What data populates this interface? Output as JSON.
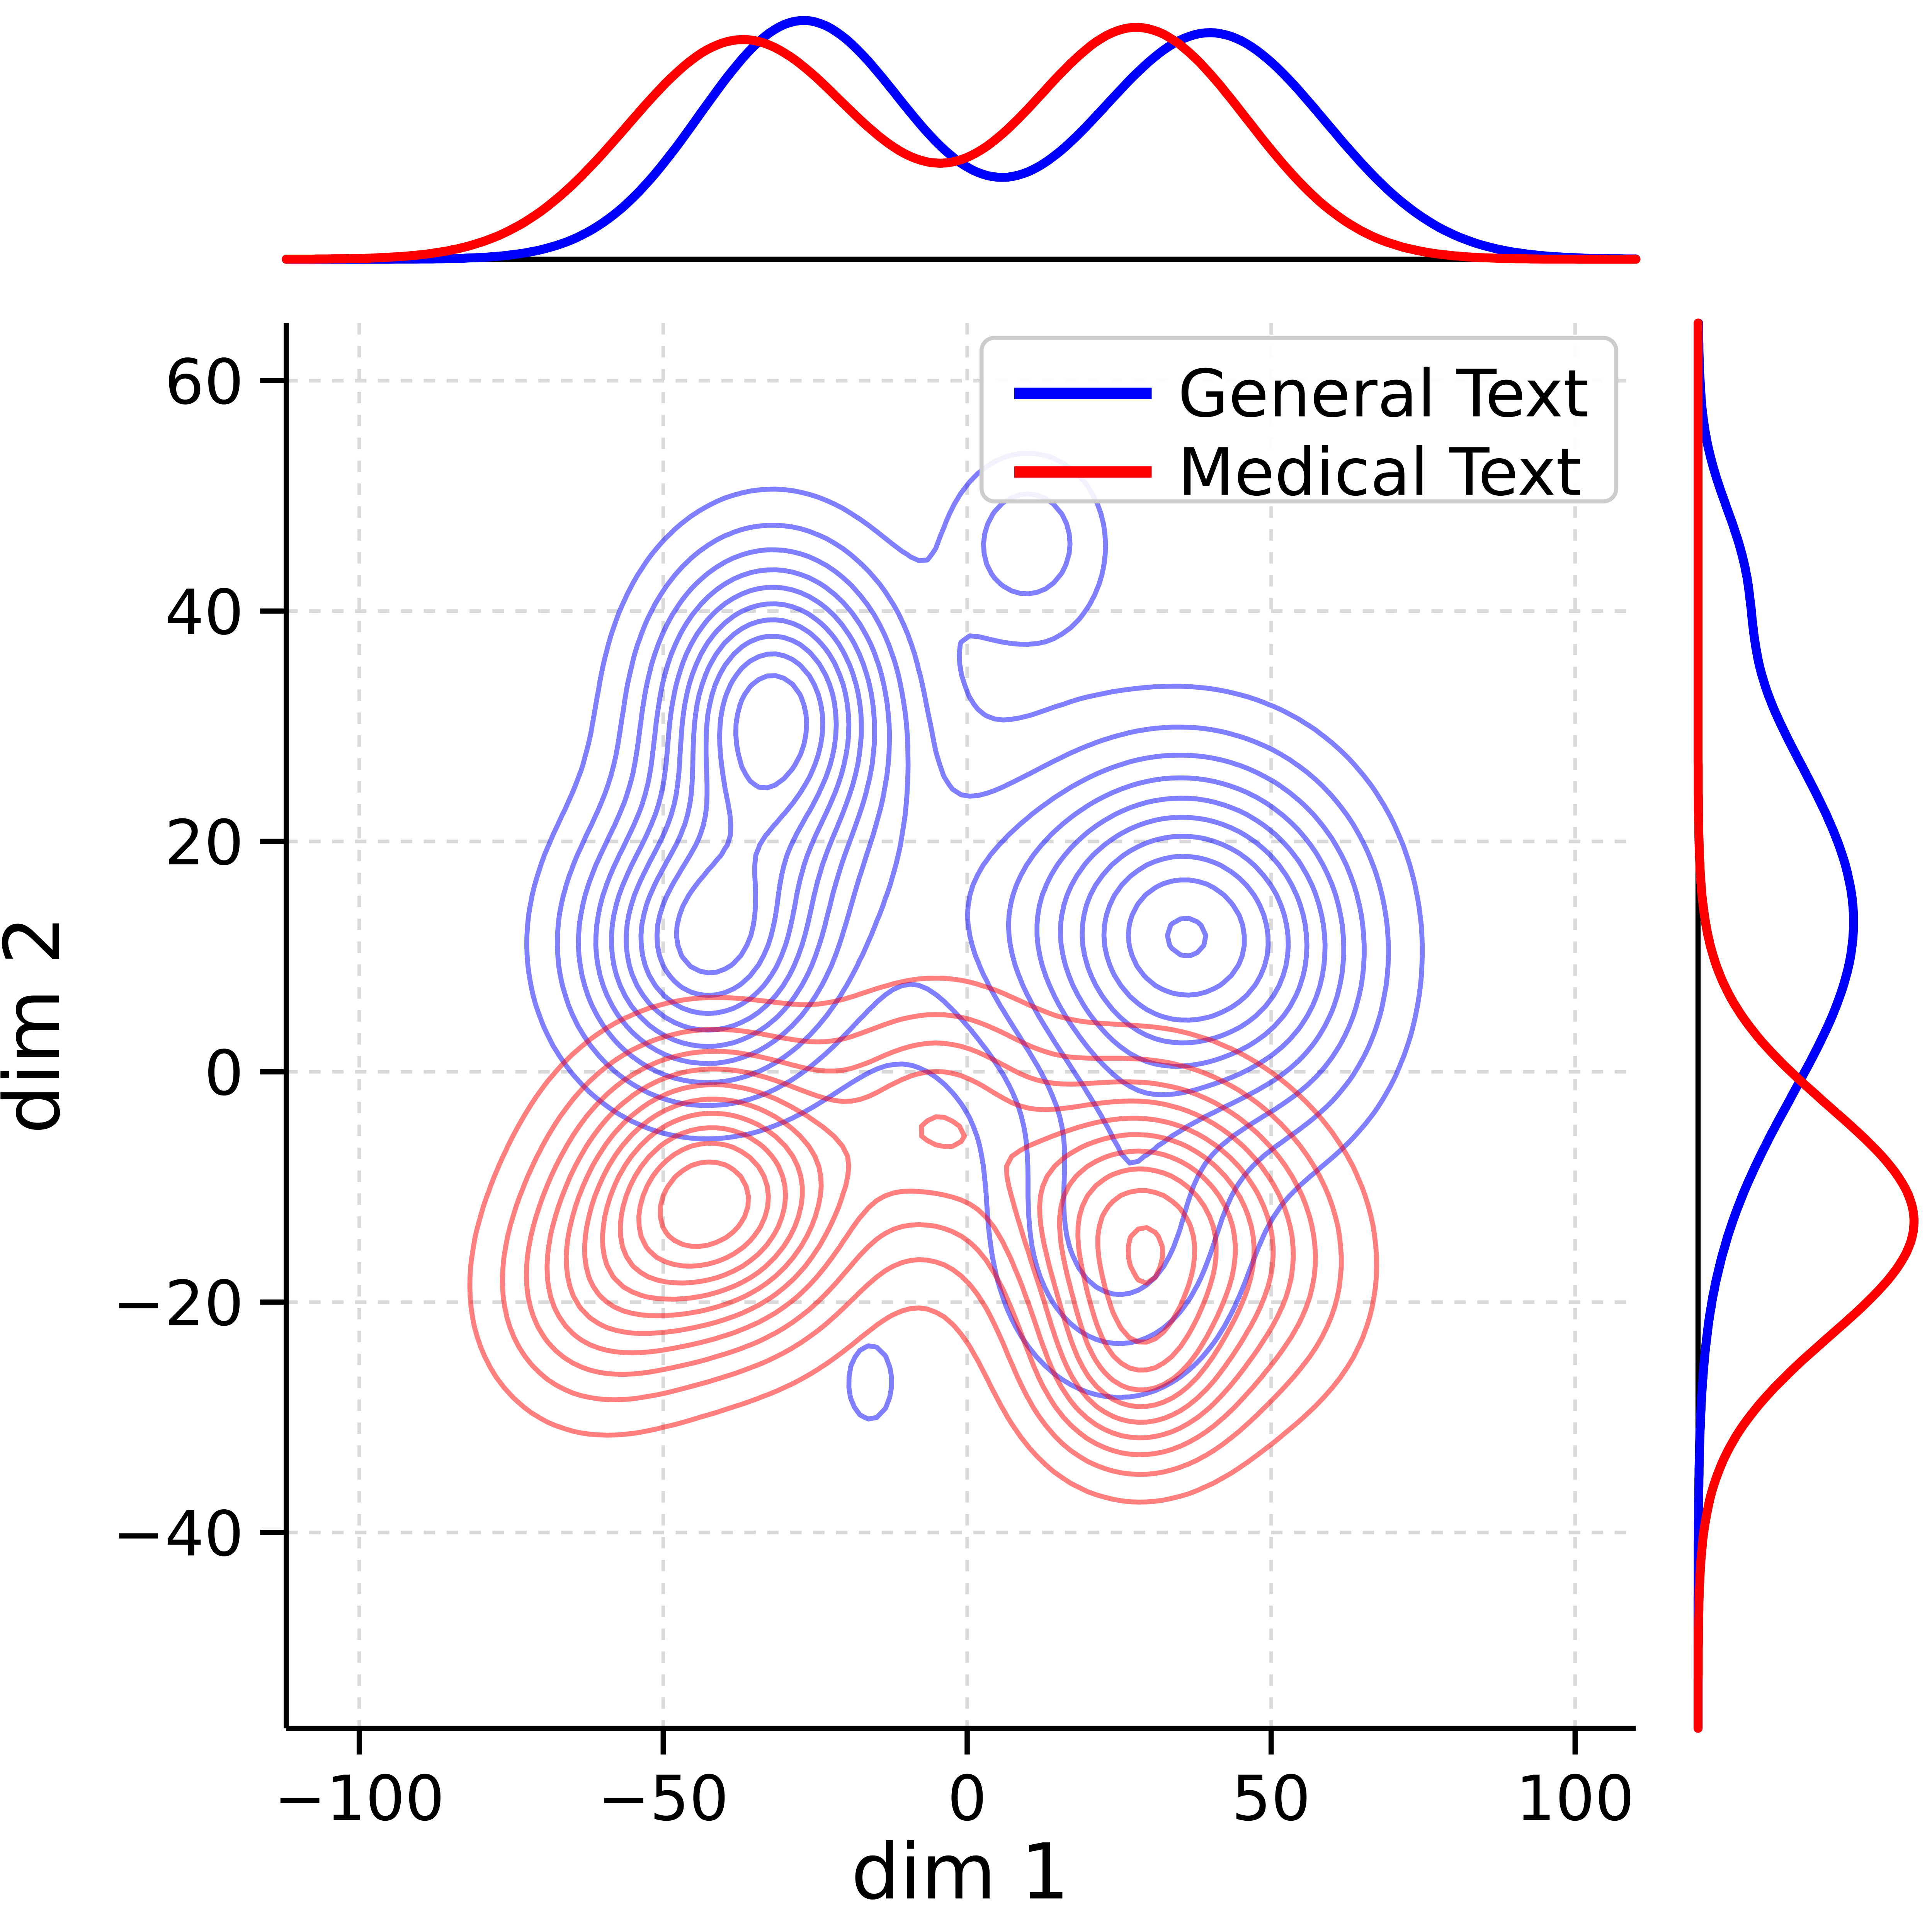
{
  "chart_data": {
    "type": "contour-kde-jointplot",
    "title": "",
    "xlabel": "dim 1",
    "ylabel": "dim 2",
    "xlim": [
      -112,
      110
    ],
    "ylim": [
      -57,
      65
    ],
    "xticks": [
      -100,
      -50,
      0,
      50,
      100
    ],
    "xtick_labels": [
      "−100",
      "−50",
      "0",
      "50",
      "100"
    ],
    "yticks": [
      -40,
      -20,
      0,
      20,
      40,
      60
    ],
    "ytick_labels": [
      "−40",
      "−20",
      "0",
      "20",
      "40",
      "60"
    ],
    "grid": true,
    "grid_style": "dashed",
    "contour_levels": 10,
    "contour_alpha": 0.5,
    "legend": {
      "position": "upper right",
      "entries": [
        {
          "label": "General Text",
          "color": "#0000ff"
        },
        {
          "label": "Medical Text",
          "color": "#ff0000"
        }
      ]
    },
    "series": [
      {
        "name": "General Text",
        "color": "#0000ff",
        "components": [
          {
            "x": -32,
            "y": 31,
            "w": 1.0,
            "sx": 13,
            "sy": 9
          },
          {
            "x": -43,
            "y": 11,
            "w": 0.85,
            "sx": 14,
            "sy": 8
          },
          {
            "x": 35,
            "y": 12,
            "w": 0.9,
            "sx": 17,
            "sy": 10
          },
          {
            "x": 10,
            "y": 46,
            "w": 0.25,
            "sx": 9,
            "sy": 5.5
          },
          {
            "x": -16,
            "y": -27,
            "w": 0.12,
            "sx": 5,
            "sy": 4.5
          },
          {
            "x": 25,
            "y": -14,
            "w": 0.33,
            "sx": 13,
            "sy": 9
          },
          {
            "x": 0,
            "y": 14,
            "w": 0.16,
            "sx": 16,
            "sy": 10
          },
          {
            "x": 55,
            "y": 8,
            "w": 0.15,
            "sx": 12,
            "sy": 10
          }
        ]
      },
      {
        "name": "Medical Text",
        "color": "#ff0000",
        "components": [
          {
            "x": -42,
            "y": -11,
            "w": 1.0,
            "sx": 15,
            "sy": 8
          },
          {
            "x": 28,
            "y": -13,
            "w": 0.85,
            "sx": 15,
            "sy": 8
          },
          {
            "x": 28,
            "y": -26,
            "w": 0.5,
            "sx": 11,
            "sy": 6
          },
          {
            "x": -5,
            "y": -4,
            "w": 0.4,
            "sx": 12,
            "sy": 7
          },
          {
            "x": -62,
            "y": -20,
            "w": 0.3,
            "sx": 12,
            "sy": 7
          },
          {
            "x": 50,
            "y": -18,
            "w": 0.2,
            "sx": 12,
            "sy": 8
          }
        ]
      }
    ],
    "marginals": {
      "top": {
        "series": [
          {
            "name": "General Text",
            "color": "#0000ff",
            "components": [
              {
                "m": -27,
                "s": 17,
                "a": 1.0
              },
              {
                "m": 40,
                "s": 19,
                "a": 0.95
              }
            ]
          },
          {
            "name": "Medical Text",
            "color": "#ff0000",
            "components": [
              {
                "m": -37,
                "s": 19,
                "a": 0.92
              },
              {
                "m": 28,
                "s": 18,
                "a": 0.97
              }
            ]
          }
        ]
      },
      "right": {
        "series": [
          {
            "name": "General Text",
            "color": "#0000ff",
            "components": [
              {
                "m": 13,
                "s": 15,
                "a": 0.72
              },
              {
                "m": 44,
                "s": 6,
                "a": 0.13
              }
            ]
          },
          {
            "name": "Medical Text",
            "color": "#ff0000",
            "components": [
              {
                "m": -13,
                "s": 10,
                "a": 1.0
              }
            ]
          }
        ]
      }
    }
  }
}
